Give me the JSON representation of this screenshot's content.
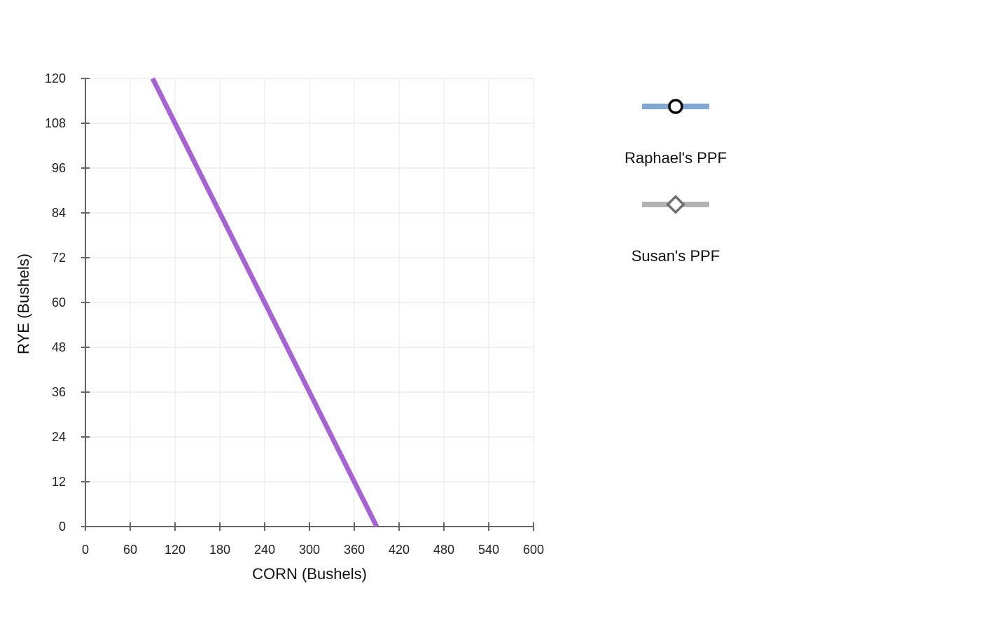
{
  "chart_data": {
    "type": "line",
    "title": "",
    "xlabel": "CORN (Bushels)",
    "ylabel": "RYE (Bushels)",
    "xlim": [
      0,
      600
    ],
    "ylim": [
      0,
      120
    ],
    "x_ticks": [
      0,
      60,
      120,
      180,
      240,
      300,
      360,
      420,
      480,
      540,
      600
    ],
    "y_ticks": [
      0,
      12,
      24,
      36,
      48,
      60,
      72,
      84,
      96,
      108,
      120
    ],
    "grid": true,
    "legend_position": "right",
    "legend": [
      {
        "name": "Raphael's PPF",
        "color": "#7fa7d1",
        "marker": "circle"
      },
      {
        "name": "Susan's PPF",
        "color": "#b3b3b3",
        "marker": "diamond"
      }
    ],
    "series": [
      {
        "color": "#a464d4",
        "x": [
          90,
          390
        ],
        "y": [
          120,
          0
        ]
      }
    ]
  }
}
